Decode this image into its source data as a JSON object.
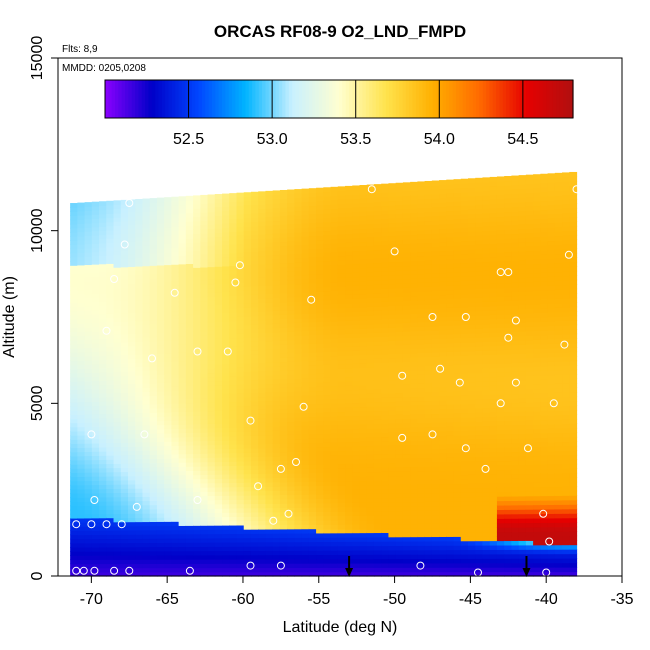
{
  "chart_data": {
    "type": "heatmap",
    "title": "ORCAS RF08-9 O2_LND_FMPD",
    "xlabel": "Latitude (deg N)",
    "ylabel": "Altitude (m)",
    "annotations": {
      "flights": "Flts: 8,9",
      "dates": "MMDD: 0205,0208"
    },
    "xlim": [
      -72.2,
      -35
    ],
    "ylim": [
      0,
      15000
    ],
    "x_ticks": [
      -70,
      -65,
      -60,
      -55,
      -50,
      -45,
      -40,
      -35
    ],
    "x_tick_labels": [
      "-70",
      "-65",
      "-60",
      "-55",
      "-50",
      "-45",
      "-40",
      "-35"
    ],
    "y_ticks": [
      0,
      5000,
      10000,
      15000
    ],
    "y_tick_labels": [
      "0",
      "5000",
      "10000",
      "15000"
    ],
    "colorbar": {
      "range": [
        52.0,
        54.8
      ],
      "ticks": [
        52.5,
        53.0,
        53.5,
        54.0,
        54.5
      ],
      "tick_labels": [
        "52.5",
        "53.0",
        "53.5",
        "54.0",
        "54.5"
      ],
      "colors": [
        "#8b00ff",
        "#0000c8",
        "#0046ff",
        "#00b4ff",
        "#c8f0ff",
        "#ffffd0",
        "#ffe34d",
        "#ffb000",
        "#ff6a00",
        "#e60000",
        "#b01010"
      ]
    },
    "domain": {
      "lat_min": -71.4,
      "lat_max": -38.0,
      "alt_top_south": 10800,
      "alt_top_north": 11700
    },
    "field_description": {
      "low_altitude_south": 52.1,
      "boundary_layer": 52.4,
      "mid_south": 53.0,
      "upper_south": 53.4,
      "upper_mid": 53.9,
      "mid_north": 53.95,
      "north_low": 54.7
    },
    "arrows_lat": [
      -53.0,
      -41.3
    ],
    "observation_points": [
      {
        "lat": -71.0,
        "alt": 150
      },
      {
        "lat": -70.5,
        "alt": 150
      },
      {
        "lat": -69.8,
        "alt": 150
      },
      {
        "lat": -68.5,
        "alt": 150
      },
      {
        "lat": -67.5,
        "alt": 150
      },
      {
        "lat": -63.5,
        "alt": 150
      },
      {
        "lat": -59.5,
        "alt": 300
      },
      {
        "lat": -57.5,
        "alt": 300
      },
      {
        "lat": -48.3,
        "alt": 300
      },
      {
        "lat": -44.5,
        "alt": 100
      },
      {
        "lat": -40.0,
        "alt": 100
      },
      {
        "lat": -70.0,
        "alt": 1500
      },
      {
        "lat": -69.0,
        "alt": 1500
      },
      {
        "lat": -68.0,
        "alt": 1500
      },
      {
        "lat": -71.0,
        "alt": 1500
      },
      {
        "lat": -69.8,
        "alt": 2200
      },
      {
        "lat": -67.0,
        "alt": 2000
      },
      {
        "lat": -63.0,
        "alt": 2200
      },
      {
        "lat": -58.0,
        "alt": 1600
      },
      {
        "lat": -57.0,
        "alt": 1800
      },
      {
        "lat": -59.0,
        "alt": 2600
      },
      {
        "lat": -57.5,
        "alt": 3100
      },
      {
        "lat": -56.5,
        "alt": 3300
      },
      {
        "lat": -70.0,
        "alt": 4100
      },
      {
        "lat": -66.5,
        "alt": 4100
      },
      {
        "lat": -59.5,
        "alt": 4500
      },
      {
        "lat": -56.0,
        "alt": 4900
      },
      {
        "lat": -49.5,
        "alt": 4000
      },
      {
        "lat": -47.5,
        "alt": 4100
      },
      {
        "lat": -45.3,
        "alt": 3700
      },
      {
        "lat": -44.0,
        "alt": 3100
      },
      {
        "lat": -43.0,
        "alt": 5000
      },
      {
        "lat": -41.2,
        "alt": 3700
      },
      {
        "lat": -40.2,
        "alt": 1800
      },
      {
        "lat": -39.8,
        "alt": 1000
      },
      {
        "lat": -49.5,
        "alt": 5800
      },
      {
        "lat": -47.0,
        "alt": 6000
      },
      {
        "lat": -45.7,
        "alt": 5600
      },
      {
        "lat": -42.0,
        "alt": 5600
      },
      {
        "lat": -39.5,
        "alt": 5000
      },
      {
        "lat": -38.8,
        "alt": 6700
      },
      {
        "lat": -42.5,
        "alt": 6900
      },
      {
        "lat": -42.0,
        "alt": 7400
      },
      {
        "lat": -61.0,
        "alt": 6500
      },
      {
        "lat": -63.0,
        "alt": 6500
      },
      {
        "lat": -66.0,
        "alt": 6300
      },
      {
        "lat": -69.0,
        "alt": 7100
      },
      {
        "lat": -68.5,
        "alt": 8600
      },
      {
        "lat": -64.5,
        "alt": 8200
      },
      {
        "lat": -55.5,
        "alt": 8000
      },
      {
        "lat": -47.5,
        "alt": 7500
      },
      {
        "lat": -45.3,
        "alt": 7500
      },
      {
        "lat": -60.5,
        "alt": 8500
      },
      {
        "lat": -60.2,
        "alt": 9000
      },
      {
        "lat": -50.0,
        "alt": 9400
      },
      {
        "lat": -43.0,
        "alt": 8800
      },
      {
        "lat": -42.5,
        "alt": 8800
      },
      {
        "lat": -38.5,
        "alt": 9300
      },
      {
        "lat": -67.8,
        "alt": 9600
      },
      {
        "lat": -67.5,
        "alt": 10800
      },
      {
        "lat": -61.2,
        "alt": 11200
      },
      {
        "lat": -51.5,
        "alt": 11200
      },
      {
        "lat": -38.0,
        "alt": 11200
      }
    ]
  }
}
